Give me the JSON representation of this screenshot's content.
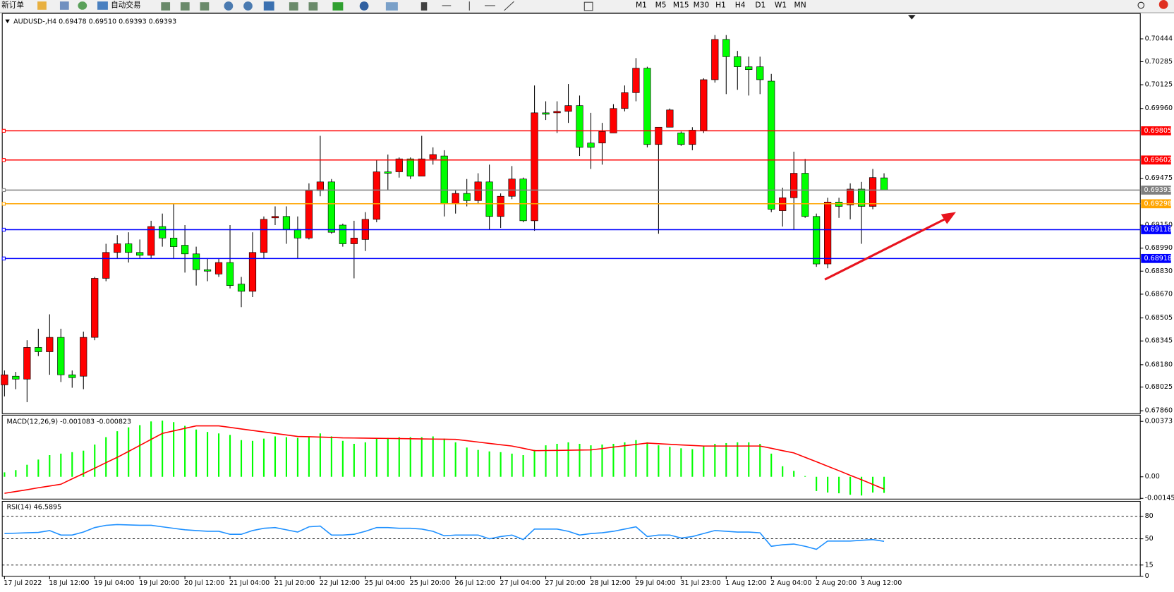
{
  "toolbar": {
    "new_order": "新订单",
    "auto_trading": "自动交易",
    "timeframes": [
      "M1",
      "M5",
      "M15",
      "M30",
      "H1",
      "H4",
      "D1",
      "W1",
      "MN"
    ]
  },
  "chart_data": [
    {
      "type": "candlestick",
      "title": "AUDUSD-,H4 0.69478 0.69510 0.69393 0.69393",
      "categories": [
        "17 Jul 2022",
        null,
        null,
        null,
        "18 Jul 12:00",
        null,
        null,
        null,
        "19 Jul 04:00",
        null,
        null,
        null,
        "19 Jul 20:00",
        null,
        null,
        null,
        "20 Jul 12:00",
        null,
        null,
        null,
        "21 Jul 04:00",
        null,
        null,
        null,
        "21 Jul 20:00",
        null,
        null,
        null,
        "22 Jul 12:00",
        null,
        null,
        null,
        "25 Jul 04:00",
        null,
        null,
        null,
        "25 Jul 20:00",
        null,
        null,
        null,
        "26 Jul 12:00",
        null,
        null,
        null,
        "27 Jul 04:00",
        null,
        null,
        null,
        "27 Jul 20:00",
        null,
        null,
        null,
        "28 Jul 12:00",
        null,
        null,
        null,
        "29 Jul 04:00",
        null,
        null,
        null,
        "31 Jul 23:00",
        null,
        null,
        null,
        "1 Aug 12:00",
        null,
        null,
        null,
        "2 Aug 04:00",
        null,
        null,
        null,
        "2 Aug 20:00",
        null,
        null,
        null,
        "3 Aug 12:00",
        null,
        null
      ],
      "open": [
        0.6804,
        0.681,
        0.6808,
        0.683,
        0.6827,
        0.6837,
        0.6811,
        0.681,
        0.6837,
        0.6878,
        0.6896,
        0.6902,
        0.6896,
        0.6894,
        0.6914,
        0.6906,
        0.6901,
        0.6895,
        0.6884,
        0.6881,
        0.6889,
        0.6874,
        0.6869,
        0.6896,
        0.692,
        0.6921,
        0.6912,
        0.6906,
        0.6939,
        0.6945,
        0.6915,
        0.6902,
        0.6905,
        0.6919,
        0.6952,
        0.6952,
        0.6961,
        0.6949,
        0.6961,
        0.6963,
        0.693,
        0.6937,
        0.6932,
        0.6945,
        0.6921,
        0.6935,
        0.6947,
        0.6918,
        0.6993,
        0.6993,
        0.6994,
        0.6998,
        0.6972,
        0.6972,
        0.6979,
        0.6996,
        0.7007,
        0.7024,
        0.6971,
        0.6983,
        0.6979,
        0.6971,
        0.6981,
        0.7016,
        0.7044,
        0.7032,
        0.7025,
        0.7025,
        0.7015,
        0.6925,
        0.6934,
        0.6951,
        0.6921,
        0.6888,
        0.6931,
        0.6929,
        0.694,
        0.6928,
        0.69478
      ],
      "high": [
        0.6814,
        0.6813,
        0.6835,
        0.6843,
        0.6853,
        0.6843,
        0.6814,
        0.6841,
        0.6879,
        0.6902,
        0.6908,
        0.691,
        0.6905,
        0.6918,
        0.6923,
        0.693,
        0.6915,
        0.69,
        0.6892,
        0.6892,
        0.6915,
        0.6879,
        0.691,
        0.6921,
        0.6928,
        0.6928,
        0.6921,
        0.6944,
        0.6977,
        0.6947,
        0.6916,
        0.6918,
        0.6924,
        0.696,
        0.6964,
        0.6962,
        0.6962,
        0.6977,
        0.6969,
        0.6967,
        0.6939,
        0.6947,
        0.6951,
        0.6957,
        0.6937,
        0.6956,
        0.6948,
        0.7012,
        0.7001,
        0.7001,
        0.7013,
        0.7005,
        0.6993,
        0.6986,
        0.6999,
        0.7012,
        0.7031,
        0.7025,
        0.6983,
        0.6996,
        0.698,
        0.6983,
        0.7017,
        0.7047,
        0.7047,
        0.7036,
        0.7032,
        0.7032,
        0.702,
        0.6941,
        0.6966,
        0.6961,
        0.6923,
        0.6934,
        0.6934,
        0.6944,
        0.6945,
        0.6954,
        0.6951
      ],
      "low": [
        0.6796,
        0.6801,
        0.6792,
        0.6824,
        0.6811,
        0.6806,
        0.6802,
        0.6801,
        0.6835,
        0.6876,
        0.6892,
        0.6889,
        0.6892,
        0.6892,
        0.69,
        0.6892,
        0.6882,
        0.6873,
        0.6876,
        0.6879,
        0.6871,
        0.6858,
        0.6865,
        0.6892,
        0.6915,
        0.6902,
        0.6892,
        0.6905,
        0.6935,
        0.6909,
        0.69,
        0.6878,
        0.6897,
        0.6917,
        0.6939,
        0.6948,
        0.6947,
        0.6949,
        0.6957,
        0.6921,
        0.6923,
        0.6928,
        0.693,
        0.6912,
        0.6913,
        0.6933,
        0.6917,
        0.6911,
        0.6988,
        0.6979,
        0.6986,
        0.6963,
        0.6954,
        0.6957,
        0.6979,
        0.6994,
        0.7001,
        0.6969,
        0.6909,
        0.6983,
        0.697,
        0.6967,
        0.6979,
        0.7014,
        0.7006,
        0.7009,
        0.7005,
        0.7006,
        0.6924,
        0.6914,
        0.6912,
        0.692,
        0.6886,
        0.6885,
        0.692,
        0.6919,
        0.6902,
        0.6926,
        0.69393
      ],
      "close": [
        0.6811,
        0.6808,
        0.683,
        0.6827,
        0.6837,
        0.6811,
        0.6809,
        0.6837,
        0.6878,
        0.6896,
        0.6902,
        0.6896,
        0.6894,
        0.6914,
        0.6906,
        0.69,
        0.6895,
        0.6884,
        0.6883,
        0.6889,
        0.6873,
        0.6869,
        0.6896,
        0.6919,
        0.6921,
        0.6912,
        0.6906,
        0.6939,
        0.6945,
        0.691,
        0.6902,
        0.6906,
        0.6919,
        0.6952,
        0.6951,
        0.6961,
        0.6949,
        0.6961,
        0.6964,
        0.693,
        0.6937,
        0.6932,
        0.6945,
        0.6921,
        0.6935,
        0.6947,
        0.6918,
        0.6993,
        0.6992,
        0.6994,
        0.6998,
        0.6969,
        0.6969,
        0.698,
        0.6996,
        0.7007,
        0.7024,
        0.6971,
        0.6983,
        0.6995,
        0.6971,
        0.6981,
        0.7016,
        0.7044,
        0.7032,
        0.7025,
        0.7023,
        0.7016,
        0.6926,
        0.6934,
        0.6951,
        0.6921,
        0.6888,
        0.6931,
        0.6928,
        0.694,
        0.6928,
        0.6948,
        0.69393
      ],
      "up_color": "#ff0000",
      "down_color": "#00ff00",
      "ylim": [
        0.6784,
        0.7062
      ],
      "yticks": [
        0.70444,
        0.70285,
        0.70125,
        {
          "value": 0.6996,
          "label": "0.69960"
        },
        0.69475,
        {
          "value": 0.6915,
          "label": "0.69150"
        },
        {
          "value": 0.6899,
          "label": "0.68990"
        },
        {
          "value": 0.6883,
          "label": "0.68830"
        },
        {
          "value": 0.6867,
          "label": "0.68670"
        },
        0.68505,
        0.68345,
        {
          "value": 0.6818,
          "label": "0.68180"
        },
        0.68025,
        {
          "value": 0.6786,
          "label": "0.67860"
        }
      ],
      "levels": [
        {
          "value": 0.69805,
          "color": "#ff0000"
        },
        {
          "value": 0.69602,
          "color": "#ff0000"
        },
        {
          "value": 0.69393,
          "color": "#808080"
        },
        {
          "value": 0.69298,
          "color": "#ffa500"
        },
        {
          "value": 0.69118,
          "color": "#0000ff"
        },
        {
          "value": 0.68918,
          "color": "#0000ff"
        }
      ]
    },
    {
      "type": "macd",
      "title": "MACD(12,26,9) -0.001083 -0.000823",
      "histogram": {
        "color": "#00ff00",
        "values": [
          0.0003,
          0.00045,
          0.00081,
          0.00116,
          0.00146,
          0.00156,
          0.00166,
          0.00176,
          0.00217,
          0.00267,
          0.00307,
          0.00333,
          0.00348,
          0.00373,
          0.00378,
          0.00368,
          0.00343,
          0.00318,
          0.00302,
          0.00292,
          0.00282,
          0.00247,
          0.00242,
          0.00257,
          0.00272,
          0.00267,
          0.00262,
          0.00272,
          0.00292,
          0.00272,
          0.00242,
          0.00222,
          0.00232,
          0.00257,
          0.00262,
          0.00267,
          0.00267,
          0.00267,
          0.00272,
          0.00257,
          0.00232,
          0.00197,
          0.00181,
          0.00171,
          0.00166,
          0.00156,
          0.00146,
          0.00181,
          0.00212,
          0.00222,
          0.00232,
          0.00222,
          0.00212,
          0.00217,
          0.00222,
          0.00232,
          0.00247,
          0.00232,
          0.00212,
          0.00202,
          0.00192,
          0.00186,
          0.00207,
          0.00222,
          0.00227,
          0.00232,
          0.00232,
          0.00222,
          0.00156,
          0.00071,
          0.0004,
          5e-05,
          -0.00096,
          -0.00106,
          -0.00111,
          -0.00121,
          -0.00126,
          -0.00106,
          -0.001083
        ]
      },
      "signal": {
        "color": "#ff0000",
        "values": [
          -0.00111,
          -0.00099,
          -0.00087,
          -0.00074,
          -0.00062,
          -0.0005,
          -0.00014,
          0.00022,
          0.00058,
          0.00095,
          0.00131,
          0.00171,
          0.00211,
          0.00252,
          0.00292,
          0.00309,
          0.00326,
          0.00343,
          0.00343,
          0.00343,
          0.00333,
          0.00322,
          0.00312,
          0.00302,
          0.00292,
          0.00282,
          0.00272,
          0.0027,
          0.00267,
          0.00265,
          0.00262,
          0.00261,
          0.0026,
          0.00259,
          0.00258,
          0.00257,
          0.00256,
          0.00255,
          0.00254,
          0.00253,
          0.00252,
          0.00243,
          0.00234,
          0.00225,
          0.00216,
          0.00207,
          0.00192,
          0.00176,
          0.00177,
          0.00178,
          0.00179,
          0.0018,
          0.00181,
          0.0019,
          0.002,
          0.00209,
          0.00218,
          0.00227,
          0.00223,
          0.00219,
          0.00215,
          0.00211,
          0.00207,
          0.00207,
          0.00207,
          0.00207,
          0.00207,
          0.00207,
          0.00192,
          0.00176,
          0.00161,
          0.00131,
          0.00101,
          0.00071,
          0.00041,
          0.0001,
          -0.0002,
          -0.00051,
          -0.000823
        ]
      },
      "ylim": [
        -0.0015,
        0.0041
      ],
      "yticks": [
        0.00373,
        {
          "value": 0,
          "label": "0.00"
        },
        -0.00145
      ]
    },
    {
      "type": "line",
      "title": "RSI(14) 46.5895",
      "color": "#1e90ff",
      "values": [
        57,
        57.5,
        58,
        58.5,
        61,
        55,
        55,
        59,
        65,
        68,
        69,
        68.5,
        68,
        68,
        66,
        64,
        62,
        61,
        60,
        60,
        56,
        56,
        61,
        64,
        65,
        62,
        59,
        66,
        67,
        55,
        55,
        56,
        60,
        65,
        65,
        64,
        64,
        63,
        60,
        54,
        55,
        55,
        55,
        50,
        53,
        55,
        49,
        63,
        63,
        63,
        60,
        55,
        57,
        58,
        60,
        63,
        66,
        53,
        55,
        55,
        51,
        53,
        57,
        61,
        60,
        59,
        59,
        58,
        40,
        42,
        43,
        40,
        36,
        47,
        47,
        47,
        48,
        49,
        46.5895
      ],
      "ylim": [
        0,
        100
      ],
      "yticks": [
        80,
        50,
        15,
        0
      ],
      "levels": [
        80,
        50,
        15
      ]
    }
  ]
}
